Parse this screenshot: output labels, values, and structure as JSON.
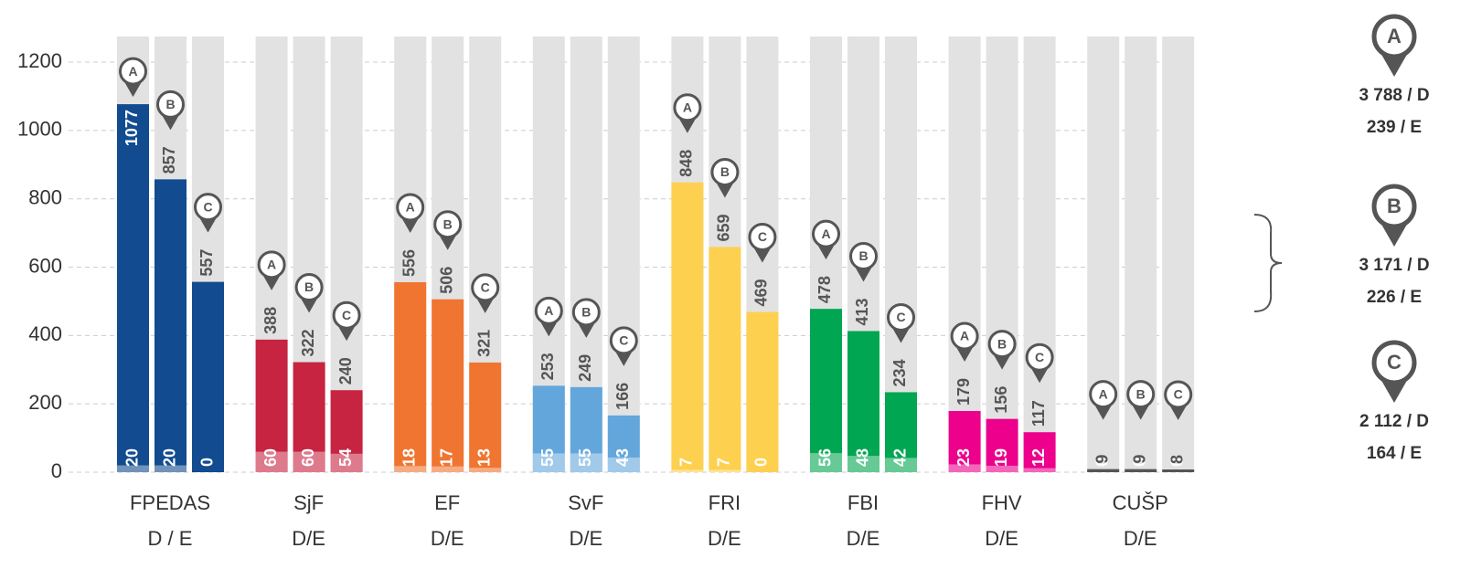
{
  "chart_data": {
    "type": "bar",
    "categories": [
      "FPEDAS",
      "SjF",
      "EF",
      "SvF",
      "FRI",
      "FBI",
      "FHV",
      "CUŠP"
    ],
    "category_sublabels": [
      "D / E",
      "D/E",
      "D/E",
      "D/E",
      "D/E",
      "D/E",
      "D/E",
      "D/E"
    ],
    "colors": [
      "#124b8f",
      "#c62440",
      "#f07530",
      "#63a6dc",
      "#fdd04f",
      "#00a651",
      "#ec008c",
      "#555555"
    ],
    "series": [
      {
        "name": "A",
        "values": [
          1077,
          388,
          556,
          253,
          848,
          478,
          179,
          9
        ],
        "e_values": [
          20,
          60,
          18,
          55,
          7,
          56,
          23,
          0
        ]
      },
      {
        "name": "B",
        "values": [
          857,
          322,
          506,
          249,
          659,
          413,
          156,
          9
        ],
        "e_values": [
          20,
          60,
          17,
          55,
          7,
          48,
          19,
          0
        ]
      },
      {
        "name": "C",
        "values": [
          557,
          240,
          321,
          166,
          469,
          234,
          117,
          8
        ],
        "e_values": [
          0,
          54,
          13,
          43,
          0,
          42,
          12,
          0
        ]
      }
    ],
    "ylim": [
      0,
      1275
    ],
    "yticks": [
      0,
      200,
      400,
      600,
      800,
      1000,
      1200
    ],
    "grid": true,
    "legend": [
      {
        "name": "A",
        "lines": [
          "3 788 / D",
          "239 / E"
        ]
      },
      {
        "name": "B",
        "lines": [
          "3 171 / D",
          "226 / E"
        ]
      },
      {
        "name": "C",
        "lines": [
          "2 112 / D",
          "164 / E"
        ]
      }
    ]
  }
}
